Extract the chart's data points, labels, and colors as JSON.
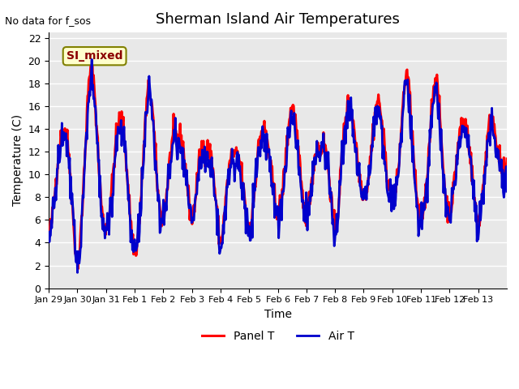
{
  "title": "Sherman Island Air Temperatures",
  "xlabel": "Time",
  "ylabel": "Temperature (C)",
  "no_data_text": "No data for f_sos",
  "legend_box_label": "SI_mixed",
  "ylim": [
    0,
    22.5
  ],
  "yticks": [
    0,
    2,
    4,
    6,
    8,
    10,
    12,
    14,
    16,
    18,
    20,
    22
  ],
  "xtick_labels": [
    "Jan 29",
    "Jan 30",
    "Jan 31",
    "Feb 1",
    "Feb 2",
    "Feb 3",
    "Feb 4",
    "Feb 5",
    "Feb 6",
    "Feb 7",
    "Feb 8",
    "Feb 9",
    "Feb 10",
    "Feb 11",
    "Feb 12",
    "Feb 13"
  ],
  "panel_color": "#ff0000",
  "air_color": "#0000cc",
  "bg_color": "#e8e8e8",
  "legend_panel_label": "Panel T",
  "legend_air_label": "Air T",
  "panel_linewidth": 2.2,
  "air_linewidth": 2.0
}
